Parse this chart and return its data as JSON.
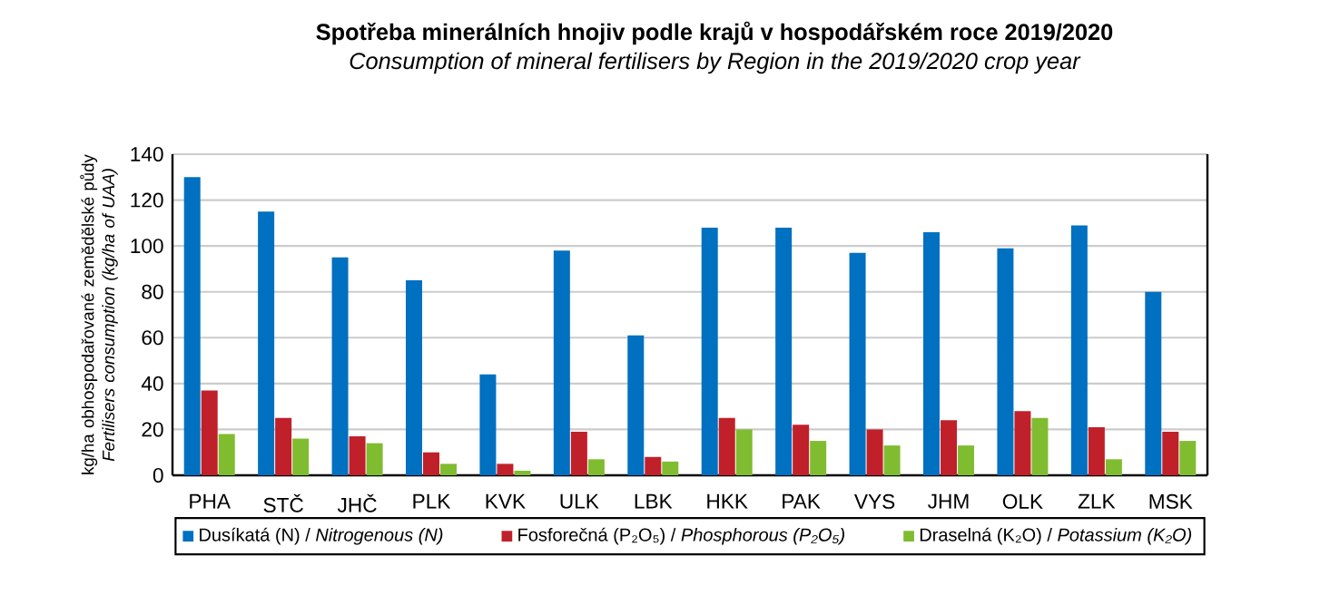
{
  "chart_data": {
    "type": "bar",
    "title": "Spotřeba minerálních hnojiv podle krajů v hospodářském roce 2019/2020",
    "subtitle": "Consumption of mineral fertilisers by Region in the 2019/2020 crop year",
    "ylabel": "kg/ha obhospodařované zemědělské půdy *Fertilisers consumption (kg/ha of UAA)*",
    "categories": [
      "PHA",
      "STČ",
      "JHČ",
      "PLK",
      "KVK",
      "ULK",
      "LBK",
      "HKK",
      "PAK",
      "VYS",
      "JHM",
      "OLK",
      "ZLK",
      "MSK"
    ],
    "series": [
      {
        "name": "Dusíkatá (N) / *Nitrogenous (N)*",
        "color": "#0070c0",
        "values": [
          130,
          115,
          95,
          85,
          44,
          98,
          61,
          108,
          108,
          97,
          106,
          99,
          109,
          80
        ]
      },
      {
        "name": "Fosforečná (P₂O₅) / *Phosphorous (P₂O₅)*",
        "color": "#c0202a",
        "values": [
          37,
          25,
          17,
          10,
          5,
          19,
          8,
          25,
          22,
          20,
          24,
          28,
          21,
          19
        ]
      },
      {
        "name": "Draselná (K₂O) / *Potassium (K₂O)*",
        "color": "#80bc30",
        "values": [
          18,
          16,
          14,
          5,
          2,
          7,
          6,
          20,
          15,
          13,
          13,
          25,
          7,
          15
        ]
      }
    ],
    "ylim": [
      0,
      140
    ],
    "yticks": [
      0,
      20,
      40,
      60,
      80,
      100,
      120,
      140
    ],
    "grid": "y",
    "legend": "bottom"
  }
}
